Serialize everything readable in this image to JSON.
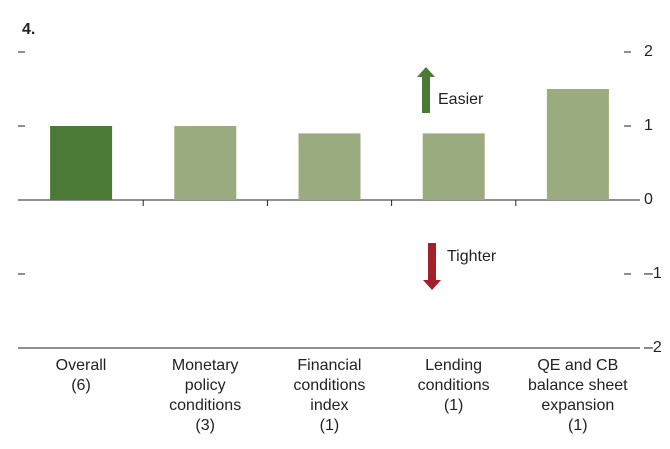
{
  "chart_data": {
    "type": "bar",
    "title": "4.",
    "categories": [
      "Overall\n(6)",
      "Monetary\npolicy\nconditions\n(3)",
      "Financial\nconditions\nindex\n(1)",
      "Lending\nconditions\n(1)",
      "QE and CB\nbalance sheet\nexpansion\n(1)"
    ],
    "values": [
      1.0,
      1.0,
      0.9,
      0.9,
      1.5
    ],
    "colors": [
      "#4a7a35",
      "#9bab80",
      "#9bab80",
      "#9bab80",
      "#9bab80"
    ],
    "ylim": [
      -2,
      2
    ],
    "yticks": [
      2,
      1,
      0,
      {
        "value": -1,
        "label": "–1"
      },
      {
        "value": -2,
        "label": "–2"
      }
    ],
    "annotations": [
      "Easier",
      "Tighter"
    ]
  }
}
